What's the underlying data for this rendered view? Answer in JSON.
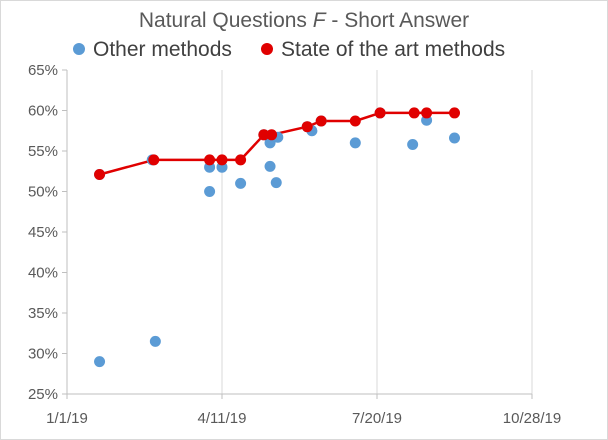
{
  "chart_data": {
    "type": "scatter",
    "title": {
      "prefix": "Natural Questions ",
      "italic": "F",
      "suffix": " - Short Answer"
    },
    "xlabel": "",
    "ylabel": "",
    "x_axis": {
      "kind": "date",
      "range": [
        "2019-01-01",
        "2019-10-28"
      ],
      "tick_labels": [
        "1/1/19",
        "4/11/19",
        "7/20/19",
        "10/28/19"
      ],
      "ticks": [
        "2019-01-01",
        "2019-04-11",
        "2019-07-20",
        "2019-10-28"
      ]
    },
    "y_axis": {
      "range": [
        25,
        65
      ],
      "step": 5,
      "tick_labels": [
        "25%",
        "30%",
        "35%",
        "40%",
        "45%",
        "50%",
        "55%",
        "60%",
        "65%"
      ]
    },
    "grid": {
      "vertical": true,
      "horizontal": false
    },
    "legend": {
      "position": "top"
    },
    "series": [
      {
        "name": "Other methods",
        "color": "#5b9bd5",
        "points": [
          {
            "x": "2019-01-22",
            "y": 29.0
          },
          {
            "x": "2019-01-22",
            "y": 52.1
          },
          {
            "x": "2019-02-27",
            "y": 31.5
          },
          {
            "x": "2019-02-25",
            "y": 53.9
          },
          {
            "x": "2019-04-03",
            "y": 50.0
          },
          {
            "x": "2019-04-03",
            "y": 53.0
          },
          {
            "x": "2019-04-11",
            "y": 53.0
          },
          {
            "x": "2019-04-23",
            "y": 51.0
          },
          {
            "x": "2019-05-08",
            "y": 57.0
          },
          {
            "x": "2019-05-12",
            "y": 53.1
          },
          {
            "x": "2019-05-12",
            "y": 56.0
          },
          {
            "x": "2019-05-13",
            "y": 56.8
          },
          {
            "x": "2019-05-16",
            "y": 51.1
          },
          {
            "x": "2019-05-17",
            "y": 56.7
          },
          {
            "x": "2019-06-05",
            "y": 58.0
          },
          {
            "x": "2019-06-08",
            "y": 57.5
          },
          {
            "x": "2019-06-14",
            "y": 58.7
          },
          {
            "x": "2019-07-06",
            "y": 56.0
          },
          {
            "x": "2019-07-22",
            "y": 59.7
          },
          {
            "x": "2019-08-12",
            "y": 55.8
          },
          {
            "x": "2019-08-21",
            "y": 58.8
          },
          {
            "x": "2019-09-08",
            "y": 56.6
          }
        ]
      },
      {
        "name": "State of the art methods",
        "color": "#e00000",
        "connected": true,
        "points": [
          {
            "x": "2019-01-22",
            "y": 52.1
          },
          {
            "x": "2019-02-26",
            "y": 53.9
          },
          {
            "x": "2019-04-03",
            "y": 53.9
          },
          {
            "x": "2019-04-11",
            "y": 53.9
          },
          {
            "x": "2019-04-23",
            "y": 53.9
          },
          {
            "x": "2019-05-08",
            "y": 57.0
          },
          {
            "x": "2019-05-13",
            "y": 57.0
          },
          {
            "x": "2019-06-05",
            "y": 58.0
          },
          {
            "x": "2019-06-14",
            "y": 58.7
          },
          {
            "x": "2019-07-06",
            "y": 58.7
          },
          {
            "x": "2019-07-22",
            "y": 59.7
          },
          {
            "x": "2019-08-13",
            "y": 59.7
          },
          {
            "x": "2019-08-21",
            "y": 59.7
          },
          {
            "x": "2019-09-08",
            "y": 59.7
          }
        ]
      }
    ]
  }
}
